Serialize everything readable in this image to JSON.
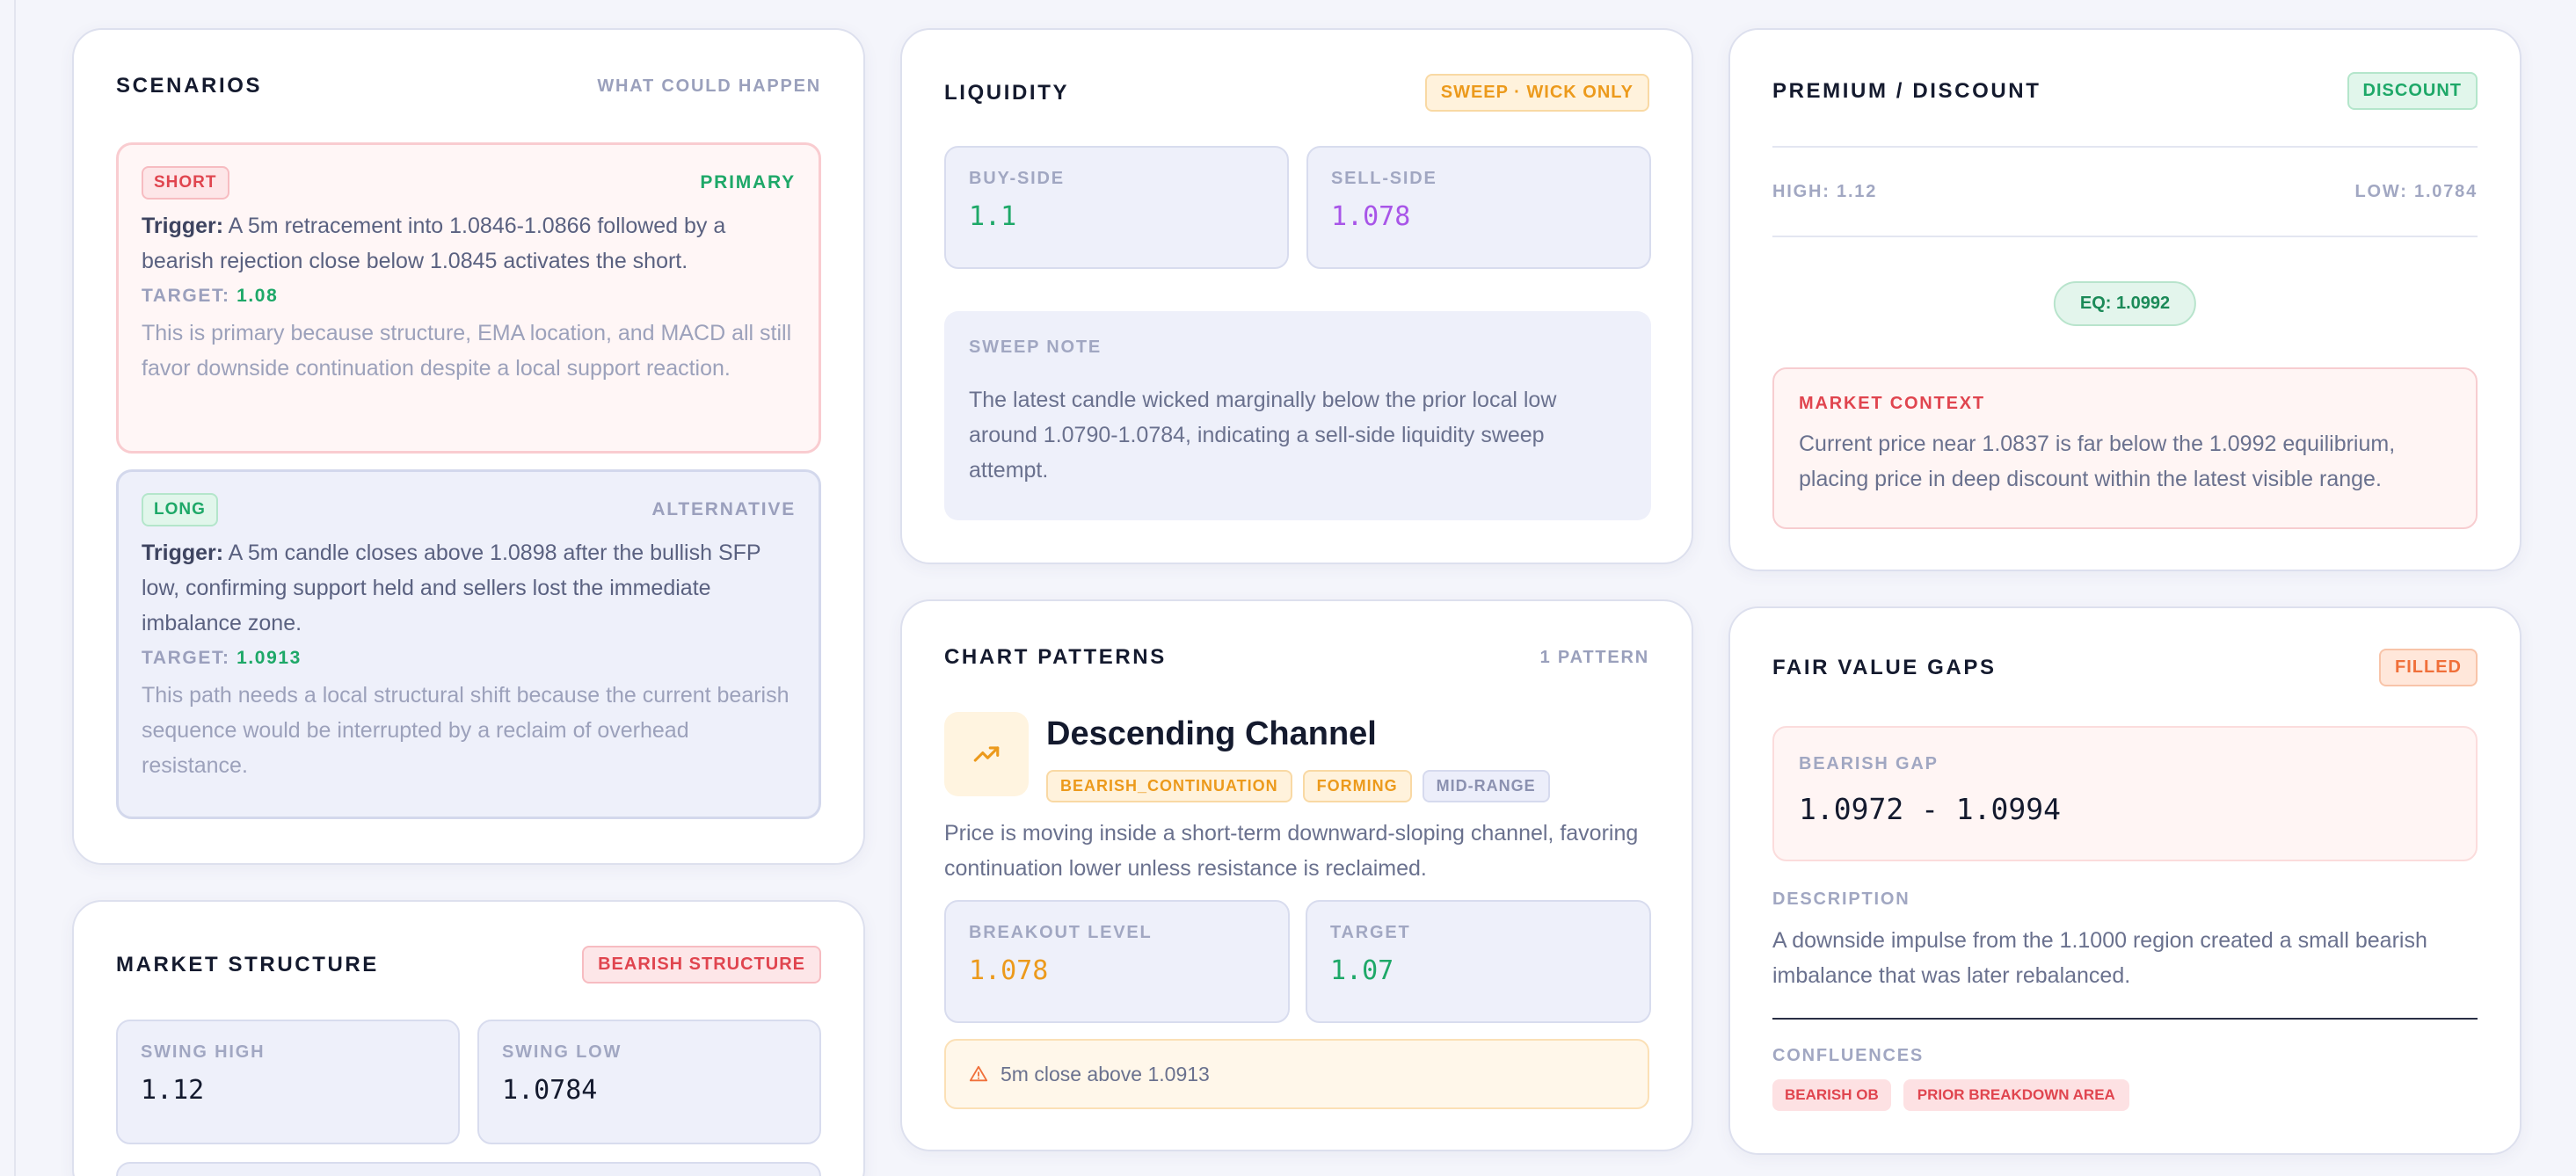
{
  "scenarios": {
    "title": "SCENARIOS",
    "meta": "WHAT COULD HAPPEN",
    "short": {
      "badge": "SHORT",
      "role": "PRIMARY",
      "trigger_label": "Trigger:",
      "trigger_text": "A 5m retracement into 1.0846-1.0866 followed by a bearish rejection close below 1.0845 activates the short.",
      "target_label": "TARGET:",
      "target_value": "1.08",
      "note": "This is primary because structure, EMA location, and MACD all still favor downside continuation despite a local support reaction."
    },
    "long": {
      "badge": "LONG",
      "role": "ALTERNATIVE",
      "trigger_label": "Trigger:",
      "trigger_text": "A 5m candle closes above 1.0898 after the bullish SFP low, confirming support held and sellers lost the immediate imbalance zone.",
      "target_label": "TARGET:",
      "target_value": "1.0913",
      "note": "This path needs a local structural shift because the current bearish sequence would be interrupted by a reclaim of overhead resistance."
    }
  },
  "market_structure": {
    "title": "MARKET STRUCTURE",
    "badge": "BEARISH STRUCTURE",
    "swing_high_label": "SWING HIGH",
    "swing_high_value": "1.12",
    "swing_low_label": "SWING LOW",
    "swing_low_value": "1.0784"
  },
  "liquidity": {
    "title": "LIQUIDITY",
    "badge": "SWEEP · WICK ONLY",
    "buy_label": "BUY-SIDE",
    "buy_value": "1.1",
    "sell_label": "SELL-SIDE",
    "sell_value": "1.078",
    "note_label": "SWEEP NOTE",
    "note_text": "The latest candle wicked marginally below the prior local low around 1.0790-1.0784, indicating a sell-side liquidity sweep attempt."
  },
  "chart_patterns": {
    "title": "CHART PATTERNS",
    "meta": "1 PATTERN",
    "pattern_name": "Descending Channel",
    "tags": [
      "BEARISH_CONTINUATION",
      "FORMING",
      "MID-RANGE"
    ],
    "description": "Price is moving inside a short-term downward-sloping channel, favoring continuation lower unless resistance is reclaimed.",
    "breakout_label": "BREAKOUT LEVEL",
    "breakout_value": "1.078",
    "target_label": "TARGET",
    "target_value": "1.07",
    "invalidation": "5m close above 1.0913",
    "icons": {
      "pattern": "trend-up-icon",
      "warning": "warning-icon"
    }
  },
  "premium_discount": {
    "title": "PREMIUM / DISCOUNT",
    "badge": "DISCOUNT",
    "high": "HIGH: 1.12",
    "low": "LOW: 1.0784",
    "eq": "EQ: 1.0992",
    "context_label": "MARKET CONTEXT",
    "context_text": "Current price near 1.0837 is far below the 1.0992 equilibrium, placing price in deep discount within the latest visible range."
  },
  "fair_value_gaps": {
    "title": "FAIR VALUE GAPS",
    "badge": "FILLED",
    "gap_label": "BEARISH GAP",
    "gap_value": "1.0972 - 1.0994",
    "description_label": "DESCRIPTION",
    "description_text": "A downside impulse from the 1.1000 region created a small bearish imbalance that was later rebalanced.",
    "confluences_label": "CONFLUENCES",
    "confluences": [
      "BEARISH OB",
      "PRIOR BREAKDOWN AREA"
    ]
  },
  "colors": {
    "background": "#f4f5fb",
    "bearish": "#e0454f",
    "bullish": "#1ea868",
    "amber": "#ec9a1c",
    "purple": "#a855e8",
    "orange": "#f0703a"
  }
}
